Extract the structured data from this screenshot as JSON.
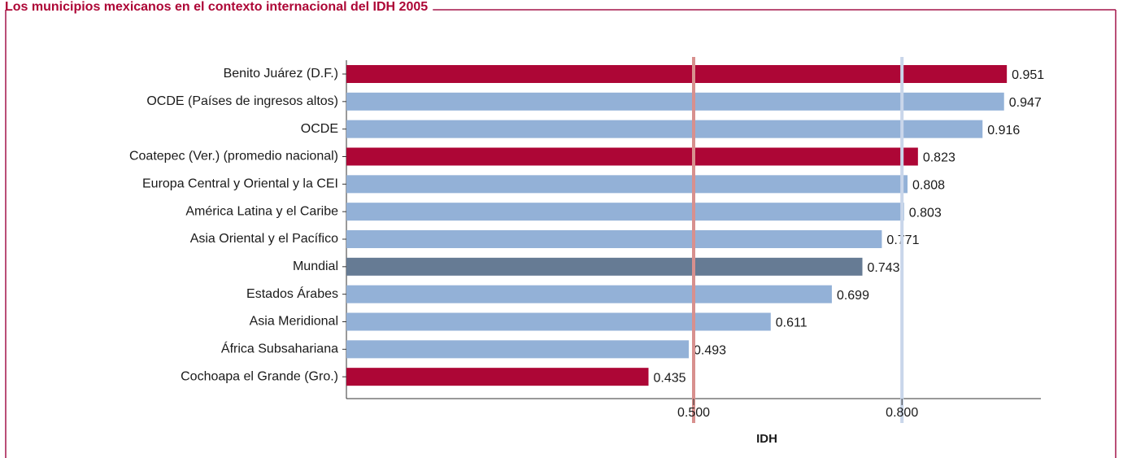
{
  "chart_data": {
    "type": "bar",
    "orientation": "horizontal",
    "title": "Los municipios mexicanos en el contexto internacional del IDH 2005",
    "x_label": "IDH",
    "categories": [
      "Benito Juárez (D.F.)",
      "OCDE (Países de ingresos altos)",
      "OCDE",
      "Coatepec (Ver.) (promedio nacional)",
      "Europa Central y Oriental y la CEI",
      "América Latina y el Caribe",
      "Asia Oriental y el Pacífico",
      "Mundial",
      "Estados Árabes",
      "Asia Meridional",
      "África Subsahariana",
      "Cochoapa el Grande (Gro.)"
    ],
    "values": [
      0.951,
      0.947,
      0.916,
      0.823,
      0.808,
      0.803,
      0.771,
      0.743,
      0.699,
      0.611,
      0.493,
      0.435
    ],
    "colors": [
      "#ad0636",
      "#93b1d7",
      "#93b1d7",
      "#ad0636",
      "#93b1d7",
      "#93b1d7",
      "#93b1d7",
      "#667b94",
      "#93b1d7",
      "#93b1d7",
      "#93b1d7",
      "#ad0636"
    ],
    "xlim": [
      0,
      1
    ],
    "xticks": [
      {
        "value": 0.5,
        "label": "0.500"
      },
      {
        "value": 0.8,
        "label": "0.800"
      }
    ],
    "reference_line_colors": [
      "#d8908e",
      "#c9d6ea"
    ]
  }
}
